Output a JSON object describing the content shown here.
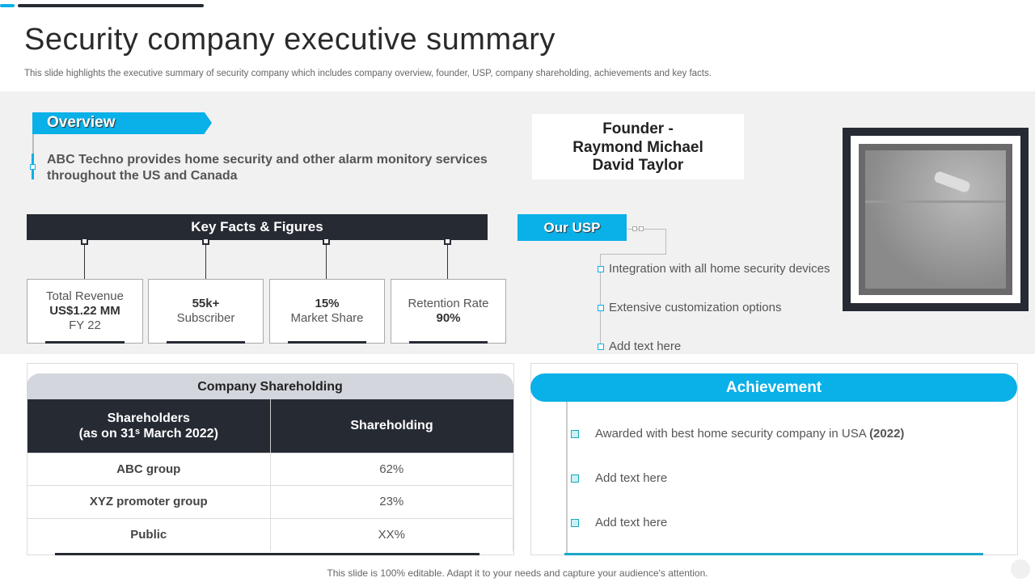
{
  "title": "Security company executive summary",
  "subtitle": "This slide highlights the executive summary of security company which includes company overview, founder, USP,  company shareholding, achievements and key facts.",
  "overview": {
    "label": "Overview",
    "text": "ABC Techno provides home security and other alarm monitory services throughout the US and Canada"
  },
  "key_facts": {
    "label": "Key Facts & Figures",
    "cards": [
      {
        "line1": "Total Revenue",
        "line2": "US$1.22 MM",
        "line3": "FY 22"
      },
      {
        "line1": "55k+",
        "line2": "Subscriber"
      },
      {
        "line1": "15%",
        "line2": "Market Share"
      },
      {
        "line1": "Retention Rate",
        "line2": "90%"
      }
    ]
  },
  "founder": {
    "line1": "Founder -",
    "line2": "Raymond Michael",
    "line3": "David Taylor"
  },
  "usp": {
    "label": "Our USP",
    "items": [
      "Integration with all home security devices",
      "Extensive customization options",
      "Add text here"
    ]
  },
  "shareholding": {
    "title": "Company Shareholding",
    "col1_line1": "Shareholders",
    "col1_line2": "(as on 31ˢ March 2022)",
    "col2": "Shareholding",
    "rows": [
      {
        "name": "ABC group",
        "value": "62%"
      },
      {
        "name": "XYZ promoter group",
        "value": "23%"
      },
      {
        "name": "Public",
        "value": "XX%"
      }
    ]
  },
  "achievement": {
    "title": "Achievement",
    "items": [
      {
        "text": "Awarded with best home security company in USA ",
        "bold": "(2022)"
      },
      {
        "text": "Add text here",
        "bold": ""
      },
      {
        "text": "Add text here",
        "bold": ""
      }
    ]
  },
  "footer": "This slide is 100% editable. Adapt it to your needs and capture your audience's attention.",
  "colors": {
    "accent": "#0ab0e8",
    "dark": "#262a33"
  }
}
